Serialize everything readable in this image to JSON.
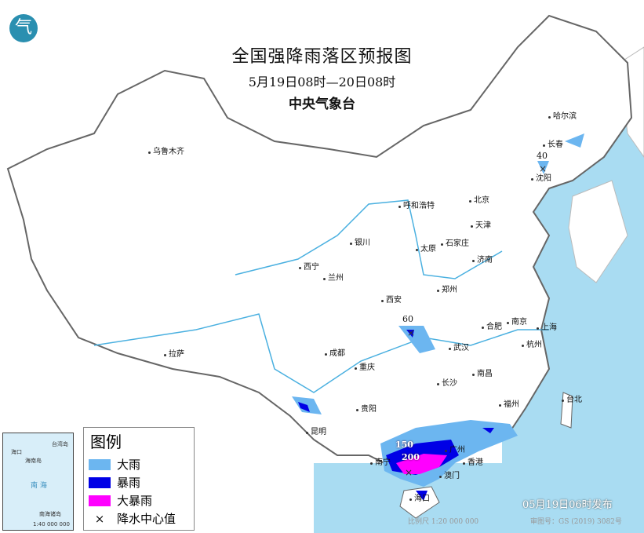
{
  "header": {
    "title": "全国强降雨落区预报图",
    "period": "5月19日08时—20日08时",
    "issuer": "中央气象台",
    "logo_text": "气"
  },
  "colors": {
    "heavy_rain": "#6cb6f0",
    "rainstorm": "#0000e6",
    "heavy_rainstorm": "#ff00ff",
    "sea": "#a9dcf2",
    "land": "#ffffff"
  },
  "legend": {
    "title": "图例",
    "items": [
      {
        "label": "大雨",
        "color": "#6cb6f0"
      },
      {
        "label": "暴雨",
        "color": "#0000e6"
      },
      {
        "label": "大暴雨",
        "color": "#ff00ff"
      },
      {
        "label": "降水中心值",
        "symbol": "×"
      }
    ]
  },
  "cities": [
    "乌鲁木齐",
    "哈尔滨",
    "长春",
    "沈阳",
    "北京",
    "天津",
    "呼和浩特",
    "石家庄",
    "太原",
    "济南",
    "银川",
    "西宁",
    "兰州",
    "郑州",
    "西安",
    "合肥",
    "南京",
    "上海",
    "武汉",
    "杭州",
    "成都",
    "重庆",
    "拉萨",
    "长沙",
    "南昌",
    "福州",
    "台北",
    "贵阳",
    "昆明",
    "南宁",
    "广州",
    "香港",
    "澳门",
    "海口"
  ],
  "precip_centers": [
    "40",
    "60",
    "150",
    "200"
  ],
  "inset": {
    "labels": [
      "海口",
      "海南岛",
      "台湾岛",
      "南  海",
      "南海诸岛"
    ],
    "scale": "1:40 000 000"
  },
  "footer": {
    "published": "05月19日06时发布",
    "scale": "比例尺 1:20 000 000",
    "audit_no": "审图号：GS (2019) 3082号"
  }
}
